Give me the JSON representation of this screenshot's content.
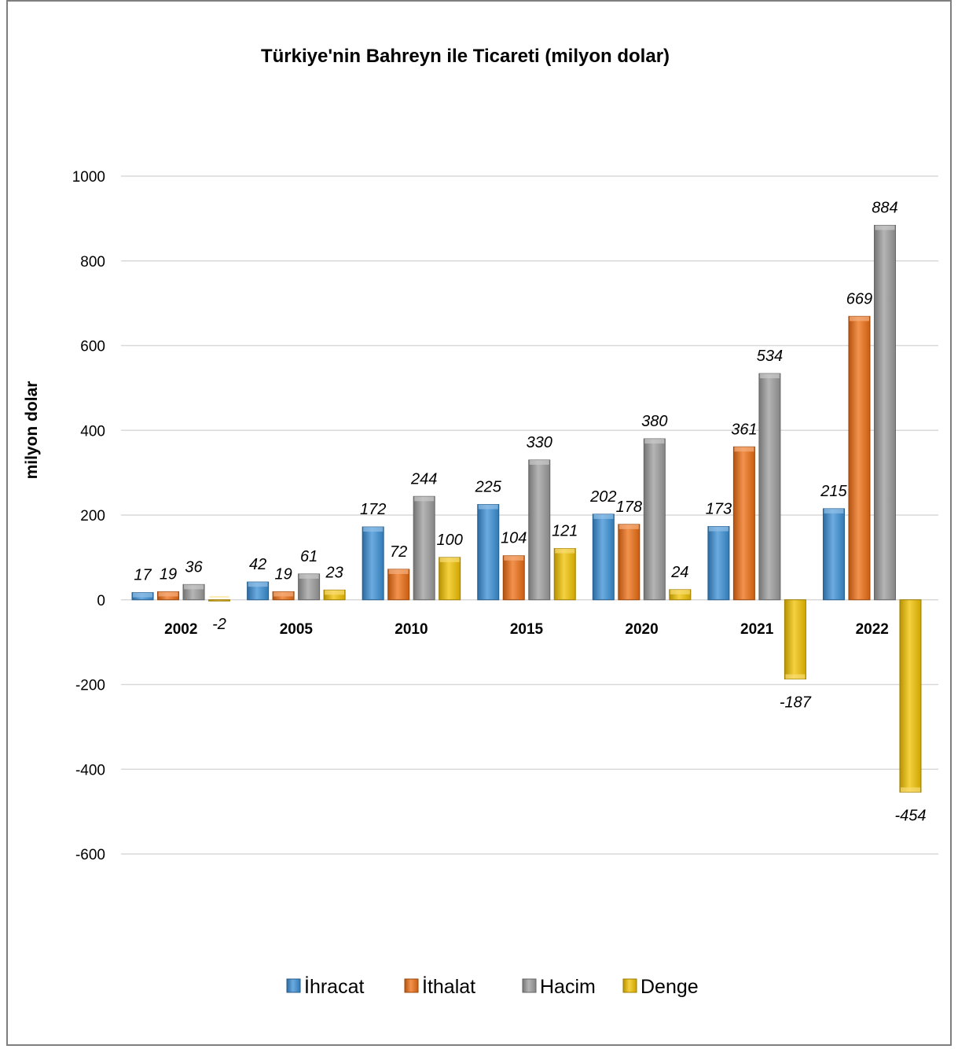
{
  "chart_data": {
    "type": "bar",
    "title": "Türkiye'nin Bahreyn ile Ticareti (milyon dolar)",
    "xlabel": "",
    "ylabel": "milyon dolar",
    "ylim": [
      -600,
      1000
    ],
    "yticks": [
      1000,
      800,
      600,
      400,
      200,
      0,
      -200,
      -400,
      -600
    ],
    "grid": true,
    "legend_position": "bottom",
    "categories": [
      "2002",
      "2005",
      "2010",
      "2015",
      "2020",
      "2021",
      "2022"
    ],
    "series": [
      {
        "name": "İhracat",
        "color": "#3a8fd6",
        "values": [
          17,
          42,
          172,
          225,
          202,
          173,
          215
        ]
      },
      {
        "name": "İthalat",
        "color": "#ee6d12",
        "values": [
          19,
          19,
          72,
          104,
          178,
          361,
          669
        ]
      },
      {
        "name": "Hacim",
        "color": "#9c9c9c",
        "values": [
          36,
          61,
          244,
          330,
          380,
          534,
          884
        ]
      },
      {
        "name": "Denge",
        "color": "#f2c200",
        "values": [
          -2,
          23,
          100,
          121,
          24,
          -187,
          -454
        ]
      }
    ]
  }
}
